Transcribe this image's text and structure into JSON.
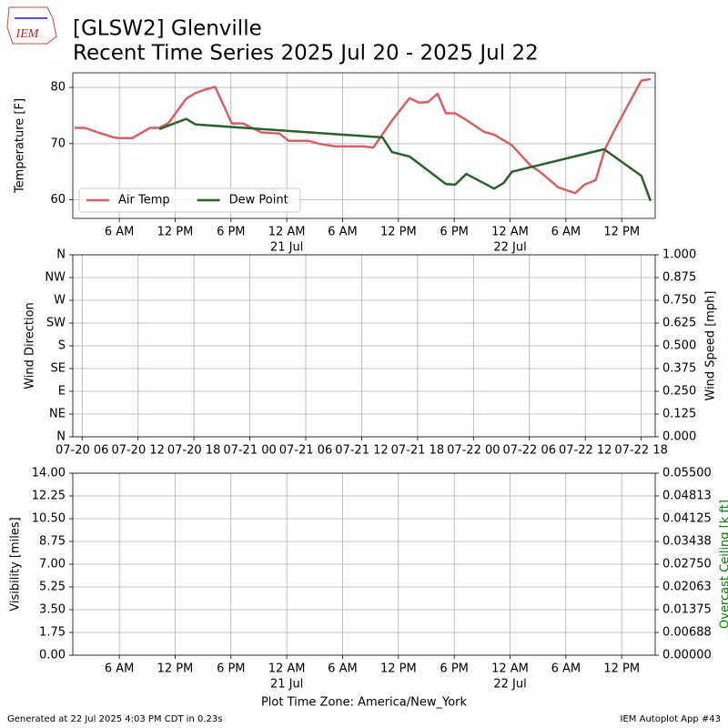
{
  "header": {
    "logo": "IEM",
    "title": "[GLSW2] Glenville",
    "subtitle": "Recent Time Series 2025 Jul 20 - 2025 Jul 22"
  },
  "footer": {
    "left": "Generated at 22 Jul 2025 4:03 PM CDT in 0.23s",
    "right": "IEM Autoplot App #43"
  },
  "chart_data": [
    {
      "type": "line",
      "ylabel": "Temperature [F]",
      "grid": true,
      "legend": "lower left",
      "xlim": [
        1.0,
        63.6
      ],
      "ylim": [
        56.7,
        82.6
      ],
      "yticks": [
        60,
        70,
        80
      ],
      "xticks": [
        {
          "value": 6,
          "label": "6 AM"
        },
        {
          "value": 12,
          "label": "12 PM"
        },
        {
          "value": 18,
          "label": "6 PM"
        },
        {
          "value": 24,
          "label": "12 AM"
        },
        {
          "value": 30,
          "label": "6 AM"
        },
        {
          "value": 36,
          "label": "12 PM"
        },
        {
          "value": 42,
          "label": "6 PM"
        },
        {
          "value": 48,
          "label": "12 AM"
        },
        {
          "value": 54,
          "label": "6 AM"
        },
        {
          "value": 60,
          "label": "12 PM"
        }
      ],
      "x_day_labels": [
        {
          "value": 24,
          "label": "21 Jul"
        },
        {
          "value": 48,
          "label": "22 Jul"
        }
      ],
      "series": [
        {
          "name": "Air Temp",
          "color": "#d6606a",
          "x": [
            1.2,
            2.3,
            3.7,
            5.4,
            6.0,
            7.4,
            9.3,
            10.3,
            11.3,
            13.2,
            14.2,
            15.2,
            16.3,
            18.1,
            19.3,
            20.1,
            21.3,
            23.2,
            24.2,
            26.3,
            27.4,
            29.2,
            32.3,
            33.3,
            35.3,
            37.2,
            38.2,
            39.2,
            40.2,
            41.1,
            42.1,
            43.3,
            45.2,
            46.3,
            48.2,
            50.2,
            51.2,
            53.2,
            55.0,
            56.0,
            57.2,
            58.2,
            59.2,
            62.1,
            63.1
          ],
          "values": [
            72.8,
            72.8,
            72.0,
            71.1,
            71.0,
            71.0,
            72.8,
            72.8,
            73.7,
            78.0,
            79.0,
            79.6,
            80.1,
            73.6,
            73.6,
            72.9,
            72.0,
            71.8,
            70.5,
            70.5,
            70.0,
            69.5,
            69.5,
            69.3,
            74.1,
            78.1,
            77.3,
            77.4,
            78.9,
            75.4,
            75.4,
            74.2,
            72.1,
            71.6,
            69.7,
            66.1,
            65.0,
            62.2,
            61.2,
            62.7,
            63.5,
            69.0,
            72.3,
            81.2,
            81.5
          ]
        },
        {
          "name": "Dew Point",
          "color": "#2e5e2e",
          "x": [
            10.3,
            13.2,
            14.2,
            34.3,
            35.3,
            37.2,
            41.1,
            42.1,
            43.3,
            46.3,
            47.3,
            48.2,
            58.1,
            59.2,
            62.1,
            63.1
          ],
          "values": [
            72.6,
            74.4,
            73.4,
            71.1,
            68.5,
            67.7,
            62.8,
            62.7,
            64.6,
            62.0,
            63.0,
            65.0,
            69.0,
            67.7,
            64.3,
            59.8
          ]
        }
      ]
    },
    {
      "type": "line",
      "ylabel": "Wind Direction",
      "y2label": "Wind Speed [mph]",
      "grid": true,
      "xlim": [
        5.0,
        67.5
      ],
      "ylim": [
        0,
        360
      ],
      "y2lim": [
        0,
        1
      ],
      "xticks": [
        {
          "value": 6,
          "label": "07-20 06"
        },
        {
          "value": 12,
          "label": "07-20 12"
        },
        {
          "value": 18,
          "label": "07-20 18"
        },
        {
          "value": 24,
          "label": "07-21 00"
        },
        {
          "value": 30,
          "label": "07-21 06"
        },
        {
          "value": 36,
          "label": "07-21 12"
        },
        {
          "value": 42,
          "label": "07-21 18"
        },
        {
          "value": 48,
          "label": "07-22 00"
        },
        {
          "value": 54,
          "label": "07-22 06"
        },
        {
          "value": 60,
          "label": "07-22 12"
        },
        {
          "value": 66,
          "label": "07-22 18"
        }
      ],
      "yticks": [
        {
          "value": 0,
          "label": "N"
        },
        {
          "value": 45,
          "label": "NE"
        },
        {
          "value": 90,
          "label": "E"
        },
        {
          "value": 135,
          "label": "SE"
        },
        {
          "value": 180,
          "label": "S"
        },
        {
          "value": 225,
          "label": "SW"
        },
        {
          "value": 270,
          "label": "W"
        },
        {
          "value": 315,
          "label": "NW"
        },
        {
          "value": 360,
          "label": "N"
        }
      ],
      "y2ticks": [
        {
          "value": 0,
          "label": "0.000"
        },
        {
          "value": 0.125,
          "label": "0.125"
        },
        {
          "value": 0.25,
          "label": "0.250"
        },
        {
          "value": 0.375,
          "label": "0.375"
        },
        {
          "value": 0.5,
          "label": "0.500"
        },
        {
          "value": 0.625,
          "label": "0.625"
        },
        {
          "value": 0.75,
          "label": "0.750"
        },
        {
          "value": 0.875,
          "label": "0.875"
        },
        {
          "value": 1,
          "label": "1.000"
        }
      ],
      "series": []
    },
    {
      "type": "line",
      "ylabel": "Visibility [miles]",
      "y2label": "Overcast Ceiling [k ft]",
      "y2label_color": "green",
      "xlabel": "Plot Time Zone: America/New_York",
      "grid": true,
      "xlim": [
        1.0,
        63.6
      ],
      "ylim": [
        0,
        14
      ],
      "y2lim": [
        0,
        0.055
      ],
      "xticks": [
        {
          "value": 6,
          "label": "6 AM"
        },
        {
          "value": 12,
          "label": "12 PM"
        },
        {
          "value": 18,
          "label": "6 PM"
        },
        {
          "value": 24,
          "label": "12 AM"
        },
        {
          "value": 30,
          "label": "6 AM"
        },
        {
          "value": 36,
          "label": "12 PM"
        },
        {
          "value": 42,
          "label": "6 PM"
        },
        {
          "value": 48,
          "label": "12 AM"
        },
        {
          "value": 54,
          "label": "6 AM"
        },
        {
          "value": 60,
          "label": "12 PM"
        }
      ],
      "x_day_labels": [
        {
          "value": 24,
          "label": "21 Jul"
        },
        {
          "value": 48,
          "label": "22 Jul"
        }
      ],
      "yticks": [
        {
          "value": 0,
          "label": "0.00"
        },
        {
          "value": 1.75,
          "label": "1.75"
        },
        {
          "value": 3.5,
          "label": "3.50"
        },
        {
          "value": 5.25,
          "label": "5.25"
        },
        {
          "value": 7,
          "label": "7.00"
        },
        {
          "value": 8.75,
          "label": "8.75"
        },
        {
          "value": 10.5,
          "label": "10.50"
        },
        {
          "value": 12.25,
          "label": "12.25"
        },
        {
          "value": 14,
          "label": "14.00"
        }
      ],
      "y2ticks": [
        {
          "value": 0,
          "label": "0.00000"
        },
        {
          "value": 0.006875,
          "label": "0.00688"
        },
        {
          "value": 0.01375,
          "label": "0.01375"
        },
        {
          "value": 0.020625,
          "label": "0.02063"
        },
        {
          "value": 0.0275,
          "label": "0.02750"
        },
        {
          "value": 0.034375,
          "label": "0.03438"
        },
        {
          "value": 0.04125,
          "label": "0.04125"
        },
        {
          "value": 0.048125,
          "label": "0.04813"
        },
        {
          "value": 0.055,
          "label": "0.05500"
        }
      ],
      "series": []
    }
  ]
}
